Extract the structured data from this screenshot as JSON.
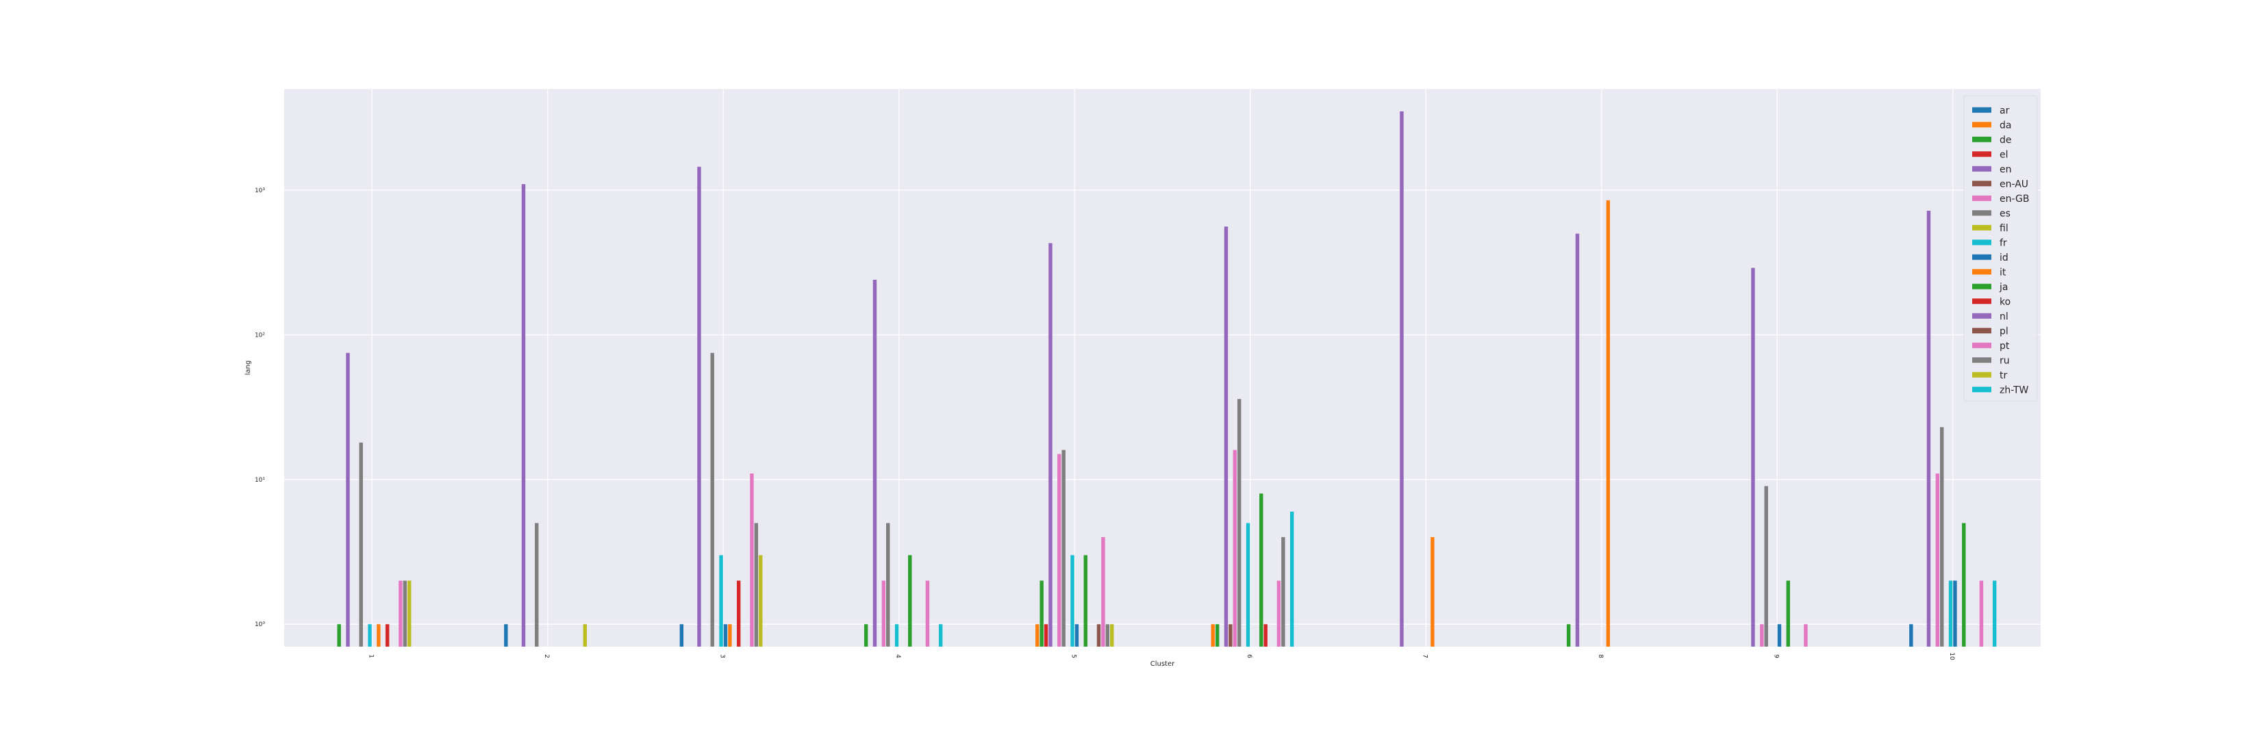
{
  "chart_data": {
    "type": "bar",
    "xlabel": "Cluster",
    "ylabel": "lang",
    "yscale": "log",
    "ylim": [
      0.7,
      5000
    ],
    "grid": true,
    "legend_position": "top-right",
    "categories": [
      "1",
      "2",
      "3",
      "4",
      "5",
      "6",
      "7",
      "8",
      "9",
      "10"
    ],
    "y_tick_values": [
      1,
      10,
      100,
      1000
    ],
    "y_tick_labels": [
      "10⁰",
      "10¹",
      "10²",
      "10³"
    ],
    "series": [
      {
        "name": "ar",
        "color": "#1f77b4",
        "values": [
          null,
          1,
          1,
          null,
          null,
          null,
          null,
          null,
          null,
          1
        ]
      },
      {
        "name": "da",
        "color": "#ff7f0e",
        "values": [
          null,
          null,
          null,
          null,
          1,
          1,
          null,
          null,
          null,
          null
        ]
      },
      {
        "name": "de",
        "color": "#2ca02c",
        "values": [
          1,
          null,
          null,
          1,
          2,
          1,
          null,
          1,
          null,
          null
        ]
      },
      {
        "name": "el",
        "color": "#d62728",
        "values": [
          null,
          null,
          null,
          null,
          1,
          null,
          null,
          null,
          null,
          null
        ]
      },
      {
        "name": "en",
        "color": "#9467bd",
        "values": [
          75,
          1100,
          1450,
          240,
          430,
          560,
          3500,
          500,
          290,
          720
        ]
      },
      {
        "name": "en-AU",
        "color": "#8c564b",
        "values": [
          null,
          null,
          null,
          null,
          null,
          1,
          null,
          null,
          null,
          null
        ]
      },
      {
        "name": "en-GB",
        "color": "#e377c2",
        "values": [
          null,
          null,
          null,
          2,
          15,
          16,
          null,
          null,
          1,
          11
        ]
      },
      {
        "name": "es",
        "color": "#7f7f7f",
        "values": [
          18,
          5,
          75,
          5,
          16,
          36,
          null,
          null,
          9,
          23
        ]
      },
      {
        "name": "fil",
        "color": "#bcbd22",
        "values": [
          null,
          null,
          null,
          null,
          null,
          null,
          null,
          null,
          null,
          null
        ]
      },
      {
        "name": "fr",
        "color": "#17becf",
        "values": [
          1,
          null,
          3,
          1,
          3,
          5,
          null,
          null,
          null,
          2
        ]
      },
      {
        "name": "id",
        "color": "#1f77b4",
        "values": [
          null,
          null,
          1,
          null,
          1,
          null,
          null,
          null,
          1,
          2
        ]
      },
      {
        "name": "it",
        "color": "#ff7f0e",
        "values": [
          1,
          null,
          1,
          null,
          null,
          null,
          4,
          850,
          null,
          null
        ]
      },
      {
        "name": "ja",
        "color": "#2ca02c",
        "values": [
          null,
          null,
          null,
          3,
          3,
          8,
          null,
          null,
          2,
          5
        ]
      },
      {
        "name": "ko",
        "color": "#d62728",
        "values": [
          1,
          null,
          2,
          null,
          null,
          1,
          null,
          null,
          null,
          null
        ]
      },
      {
        "name": "nl",
        "color": "#9467bd",
        "values": [
          null,
          null,
          null,
          null,
          null,
          null,
          null,
          null,
          null,
          null
        ]
      },
      {
        "name": "pl",
        "color": "#8c564b",
        "values": [
          null,
          null,
          null,
          null,
          1,
          null,
          null,
          null,
          null,
          null
        ]
      },
      {
        "name": "pt",
        "color": "#e377c2",
        "values": [
          2,
          null,
          11,
          2,
          4,
          2,
          null,
          null,
          1,
          2
        ]
      },
      {
        "name": "ru",
        "color": "#7f7f7f",
        "values": [
          2,
          null,
          5,
          null,
          1,
          4,
          null,
          null,
          null,
          null
        ]
      },
      {
        "name": "tr",
        "color": "#bcbd22",
        "values": [
          2,
          1,
          3,
          null,
          1,
          null,
          null,
          null,
          null,
          null
        ]
      },
      {
        "name": "zh-TW",
        "color": "#17becf",
        "values": [
          null,
          null,
          null,
          1,
          null,
          6,
          null,
          null,
          null,
          2
        ]
      }
    ]
  }
}
